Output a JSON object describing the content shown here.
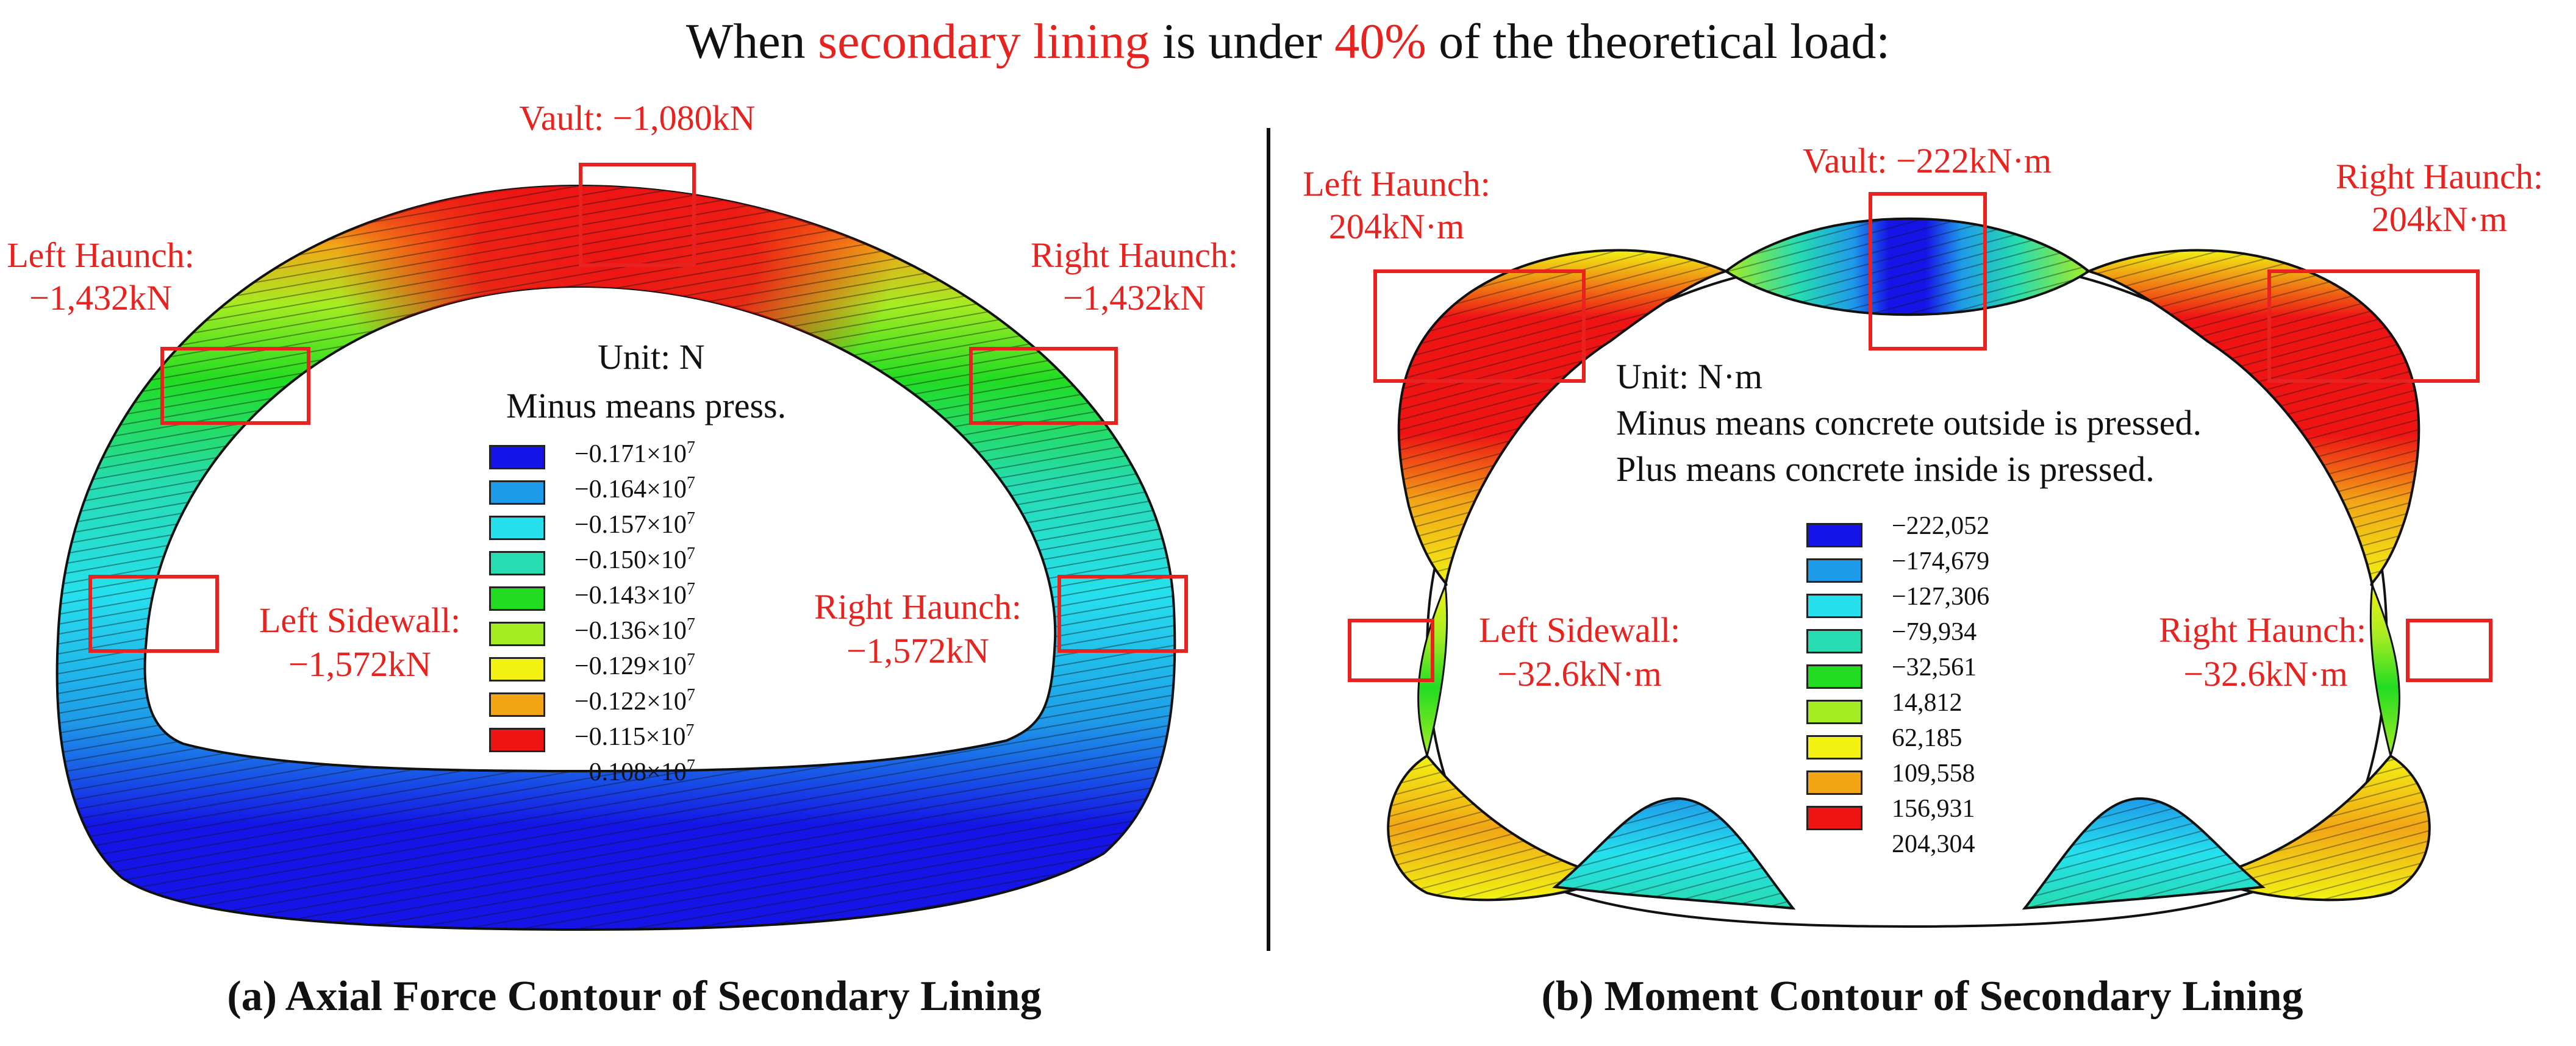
{
  "title": {
    "part1": "When ",
    "highlight1": "secondary lining",
    "part2": " is under ",
    "highlight2": "40%",
    "part3": " of the theoretical load:"
  },
  "colors": {
    "accent": "#e8221e",
    "contour": [
      "#1414e6",
      "#1e9be8",
      "#26e0ee",
      "#26dcb0",
      "#22dc22",
      "#a6ec22",
      "#f2f214",
      "#f2a616",
      "#ee1414"
    ]
  },
  "panel_a": {
    "caption": "(a) Axial Force Contour of Secondary Lining",
    "unit_line1": "Unit: N",
    "unit_line2": "Minus means press.",
    "labels": {
      "vault": "Vault: −1,080kN",
      "left_haunch_1": "Left Haunch:",
      "left_haunch_2": "−1,432kN",
      "right_haunch_1": "Right Haunch:",
      "right_haunch_2": "−1,432kN",
      "left_sidewall_1": "Left Sidewall:",
      "left_sidewall_2": "−1,572kN",
      "right_sidewall_1": "Right Haunch:",
      "right_sidewall_2": "−1,572kN"
    },
    "legend": [
      "−0.171×10",
      "−0.164×10",
      "−0.157×10",
      "−0.150×10",
      "−0.143×10",
      "−0.136×10",
      "−0.129×10",
      "−0.122×10",
      "−0.115×10",
      "−0.108×10"
    ],
    "legend_exp": "7"
  },
  "panel_b": {
    "caption": "(b) Moment Contour of Secondary Lining",
    "unit_line1": "Unit: N·m",
    "unit_line2": "Minus means concrete outside is pressed.",
    "unit_line3": "Plus means concrete inside is pressed.",
    "labels": {
      "vault": "Vault: −222kN·m",
      "left_haunch_1": "Left Haunch:",
      "left_haunch_2": "204kN·m",
      "right_haunch_1": "Right Haunch:",
      "right_haunch_2": "204kN·m",
      "left_sidewall_1": "Left Sidewall:",
      "left_sidewall_2": "−32.6kN·m",
      "right_sidewall_1": "Right Haunch:",
      "right_sidewall_2": "−32.6kN·m"
    },
    "legend": [
      "−222,052",
      "−174,679",
      "−127,306",
      "−79,934",
      "−32,561",
      "14,812",
      "62,185",
      "109,558",
      "156,931",
      "204,304"
    ]
  }
}
